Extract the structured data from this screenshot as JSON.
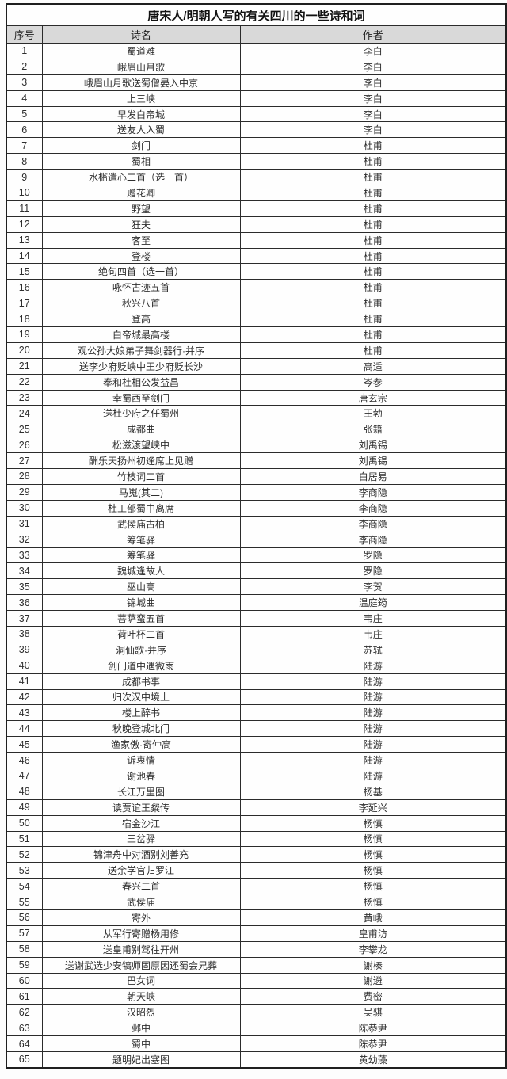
{
  "title": "唐宋人/明朝人写的有关四川的一些诗和词",
  "table": {
    "columns": [
      "序号",
      "诗名",
      "作者"
    ],
    "rows": [
      [
        "1",
        "蜀道难",
        "李白"
      ],
      [
        "2",
        "峨眉山月歌",
        "李白"
      ],
      [
        "3",
        "峨眉山月歌送蜀僧晏入中京",
        "李白"
      ],
      [
        "4",
        "上三峡",
        "李白"
      ],
      [
        "5",
        "早发白帝城",
        "李白"
      ],
      [
        "6",
        "送友人入蜀",
        "李白"
      ],
      [
        "7",
        "剑门",
        "杜甫"
      ],
      [
        "8",
        "蜀相",
        "杜甫"
      ],
      [
        "9",
        "水槛遣心二首（选一首）",
        "杜甫"
      ],
      [
        "10",
        "赠花卿",
        "杜甫"
      ],
      [
        "11",
        "野望",
        "杜甫"
      ],
      [
        "12",
        "狂夫",
        "杜甫"
      ],
      [
        "13",
        "客至",
        "杜甫"
      ],
      [
        "14",
        "登楼",
        "杜甫"
      ],
      [
        "15",
        "绝句四首（选一首）",
        "杜甫"
      ],
      [
        "16",
        "咏怀古迹五首",
        "杜甫"
      ],
      [
        "17",
        "秋兴八首",
        "杜甫"
      ],
      [
        "18",
        "登高",
        "杜甫"
      ],
      [
        "19",
        "白帝城最高楼",
        "杜甫"
      ],
      [
        "20",
        "观公孙大娘弟子舞剑器行·并序",
        "杜甫"
      ],
      [
        "21",
        "送李少府贬峡中王少府贬长沙",
        "高适"
      ],
      [
        "22",
        "奉和杜相公发益昌",
        "岑参"
      ],
      [
        "23",
        "幸蜀西至剑门",
        "唐玄宗"
      ],
      [
        "24",
        "送杜少府之任蜀州",
        "王勃"
      ],
      [
        "25",
        "成都曲",
        "张籍"
      ],
      [
        "26",
        "松滋渡望峡中",
        "刘禹锡"
      ],
      [
        "27",
        "酬乐天扬州初逢席上见赠",
        "刘禹锡"
      ],
      [
        "28",
        "竹枝词二首",
        "白居易"
      ],
      [
        "29",
        "马嵬(其二)",
        "李商隐"
      ],
      [
        "30",
        "杜工部蜀中离席",
        "李商隐"
      ],
      [
        "31",
        "武侯庙古柏",
        "李商隐"
      ],
      [
        "32",
        "筹笔驿",
        "李商隐"
      ],
      [
        "33",
        "筹笔驿",
        "罗隐"
      ],
      [
        "34",
        "魏城逢故人",
        "罗隐"
      ],
      [
        "35",
        "巫山高",
        "李贺"
      ],
      [
        "36",
        "锦城曲",
        "温庭筠"
      ],
      [
        "37",
        "菩萨蛮五首",
        "韦庄"
      ],
      [
        "38",
        "荷叶杯二首",
        "韦庄"
      ],
      [
        "39",
        "洞仙歌·并序",
        "苏轼"
      ],
      [
        "40",
        "剑门道中遇微雨",
        "陆游"
      ],
      [
        "41",
        "成都书事",
        "陆游"
      ],
      [
        "42",
        "归次汉中境上",
        "陆游"
      ],
      [
        "43",
        "楼上醉书",
        "陆游"
      ],
      [
        "44",
        "秋晚登城北门",
        "陆游"
      ],
      [
        "45",
        "渔家傲·寄仲高",
        "陆游"
      ],
      [
        "46",
        "诉衷情",
        "陆游"
      ],
      [
        "47",
        "谢池春",
        "陆游"
      ],
      [
        "48",
        "长江万里图",
        "杨基"
      ],
      [
        "49",
        "读贾谊王粲传",
        "李延兴"
      ],
      [
        "50",
        "宿金沙江",
        "杨慎"
      ],
      [
        "51",
        "三岔驿",
        "杨慎"
      ],
      [
        "52",
        "锦津舟中对酒别刘善充",
        "杨慎"
      ],
      [
        "53",
        "送余学官归罗江",
        "杨慎"
      ],
      [
        "54",
        "春兴二首",
        "杨慎"
      ],
      [
        "55",
        "武侯庙",
        "杨慎"
      ],
      [
        "56",
        "寄外",
        "黄峨"
      ],
      [
        "57",
        "从军行寄赠杨用修",
        "皇甫汸"
      ],
      [
        "58",
        "送皇甫别驾往开州",
        "李攀龙"
      ],
      [
        "59",
        "送谢武选少安犒师固原因还蜀会兄葬",
        "谢榛"
      ],
      [
        "60",
        "巴女词",
        "谢遴"
      ],
      [
        "61",
        "朝天峡",
        "费密"
      ],
      [
        "62",
        "汉昭烈",
        "吴骐"
      ],
      [
        "63",
        "邺中",
        "陈恭尹"
      ],
      [
        "64",
        "蜀中",
        "陈恭尹"
      ],
      [
        "65",
        "题明妃出塞图",
        "黄幼藻"
      ]
    ]
  },
  "colors": {
    "header_bg": "#d9d9d9",
    "border": "#2b2b2b",
    "text": "#2e2e2e"
  }
}
